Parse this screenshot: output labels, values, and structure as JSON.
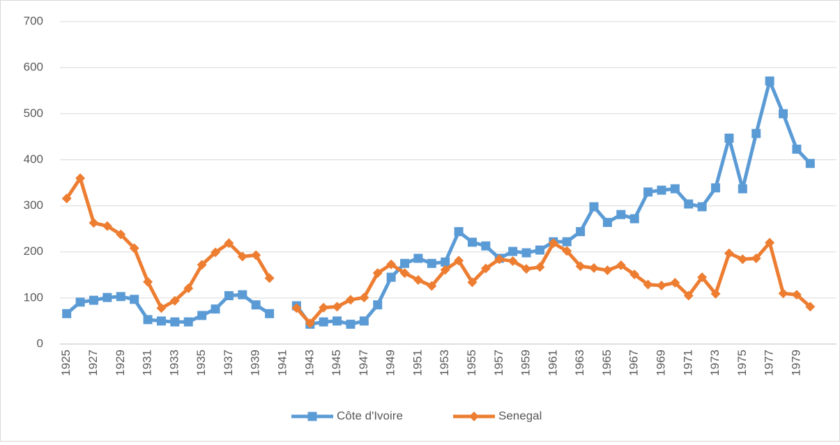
{
  "chart_data": {
    "type": "line",
    "categories": [
      "1925",
      null,
      "1927",
      null,
      "1929",
      null,
      "1931",
      null,
      "1933",
      null,
      "1935",
      null,
      "1937",
      null,
      "1939",
      null,
      "1941",
      null,
      "1943",
      null,
      "1945",
      null,
      "1947",
      null,
      "1949",
      null,
      "1951",
      null,
      "1953",
      null,
      "1955",
      null,
      "1957",
      null,
      "1959",
      null,
      "1961",
      null,
      "1963",
      null,
      "1965",
      null,
      "1967",
      null,
      "1969",
      null,
      "1971",
      null,
      "1973",
      null,
      "1975",
      null,
      "1977",
      null,
      "1979",
      null
    ],
    "series": [
      {
        "name": "Côte d'Ivoire",
        "color": "#5b9bd5",
        "marker": "square",
        "values": [
          66,
          91,
          95,
          101,
          103,
          97,
          53,
          50,
          48,
          48,
          62,
          76,
          105,
          107,
          85,
          66,
          null,
          83,
          43,
          48,
          50,
          43,
          50,
          85,
          145,
          175,
          186,
          175,
          178,
          244,
          221,
          213,
          186,
          201,
          198,
          204,
          222,
          222,
          244,
          298,
          264,
          281,
          272,
          330,
          334,
          337,
          304,
          298,
          339,
          447,
          337,
          457,
          571,
          500,
          423,
          392
        ]
      },
      {
        "name": "Senegal",
        "color": "#ed7d31",
        "marker": "diamond",
        "values": [
          316,
          360,
          263,
          256,
          238,
          208,
          135,
          78,
          94,
          121,
          172,
          199,
          219,
          190,
          193,
          143,
          null,
          78,
          45,
          79,
          81,
          96,
          101,
          154,
          173,
          154,
          139,
          126,
          161,
          181,
          134,
          164,
          184,
          180,
          163,
          167,
          219,
          202,
          169,
          165,
          160,
          171,
          151,
          129,
          127,
          133,
          105,
          145,
          109,
          197,
          184,
          186,
          220,
          110,
          107,
          81
        ]
      }
    ],
    "ylim": [
      0,
      700
    ],
    "yticks": [
      0,
      100,
      200,
      300,
      400,
      500,
      600,
      700
    ],
    "grid": true,
    "legend": "bottom"
  }
}
